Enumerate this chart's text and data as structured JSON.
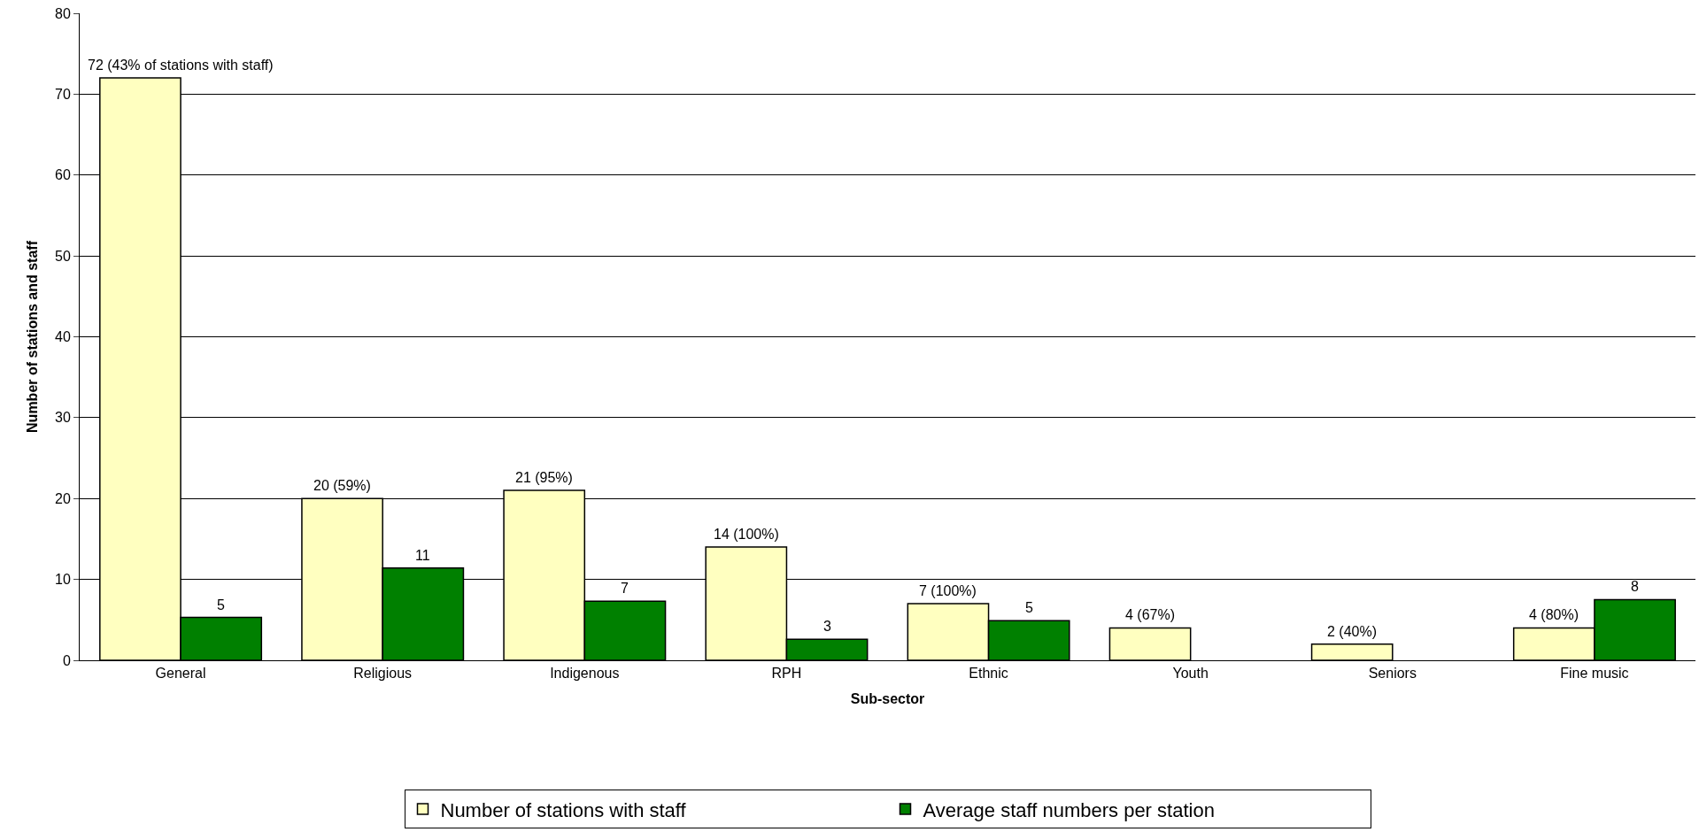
{
  "chart_data": {
    "type": "bar",
    "xlabel": "Sub-sector",
    "ylabel": "Number of stations and staff",
    "categories": [
      "General",
      "Religious",
      "Indigenous",
      "RPH",
      "Ethnic",
      "Youth",
      "Seniors",
      "Fine music"
    ],
    "series": [
      {
        "name": "Number of stations with staff",
        "color": "#ffffc0",
        "values": [
          72,
          20,
          21,
          14,
          7,
          4,
          2,
          4
        ],
        "value_labels": [
          "72 (43% of stations with staff)",
          "20 (59%)",
          "21 (95%)",
          "14 (100%)",
          "7 (100%)",
          "4 (67%)",
          "2 (40%)",
          "4 (80%)"
        ]
      },
      {
        "name": "Average staff numbers per station",
        "color": "#008000",
        "values": [
          5.3,
          11.4,
          7.3,
          2.6,
          4.9,
          null,
          null,
          7.5
        ],
        "value_labels": [
          "5",
          "11",
          "7",
          "3",
          "5",
          null,
          null,
          "8"
        ]
      }
    ],
    "ylim": [
      0,
      80
    ],
    "yticks": [
      0,
      10,
      20,
      30,
      40,
      50,
      60,
      70,
      80
    ],
    "grid": "y",
    "legend": "bottom"
  }
}
